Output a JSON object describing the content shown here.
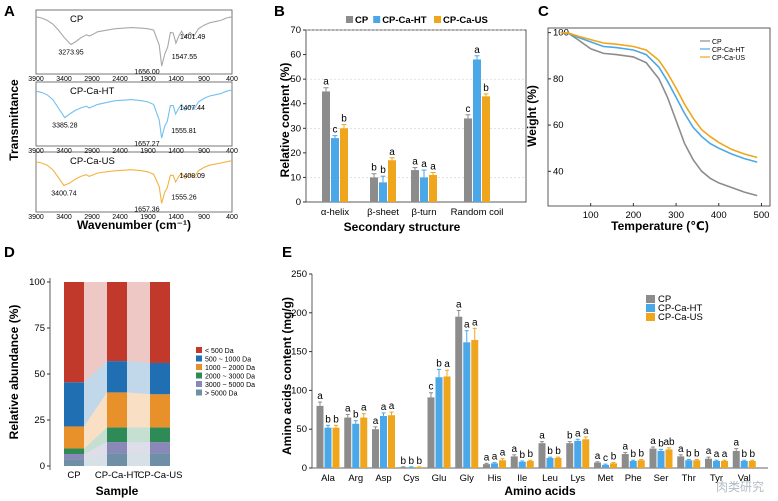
{
  "colors": {
    "CP": "#8c8c8c",
    "CP-Ca-HT": "#4aa8e8",
    "CP-Ca-US": "#f0a61c"
  },
  "panel_letters": [
    "A",
    "B",
    "C",
    "D",
    "E"
  ],
  "watermark": "肉类研究",
  "chart_data": [
    {
      "panel": "A",
      "type": "line",
      "ylabel": "Transmittance",
      "xlabel": "Wavenumber (cm⁻¹)",
      "xlim": [
        3900,
        400
      ],
      "xticks": [
        3900,
        3400,
        2900,
        2400,
        1900,
        1400,
        900,
        400
      ],
      "series": [
        {
          "name": "CP",
          "color": "#a8a8a8",
          "x": [
            3900,
            3800,
            3700,
            3600,
            3500,
            3400,
            3300,
            3274,
            3200,
            3100,
            3000,
            2950,
            2900,
            2800,
            2500,
            2200,
            2000,
            1900,
            1800,
            1700,
            1656,
            1600,
            1548,
            1500,
            1450,
            1401,
            1350,
            1300,
            1240,
            1150,
            1080,
            1000,
            900,
            800,
            700,
            600,
            500,
            400
          ],
          "y": [
            0.92,
            0.9,
            0.86,
            0.8,
            0.7,
            0.58,
            0.48,
            0.46,
            0.5,
            0.57,
            0.62,
            0.6,
            0.62,
            0.67,
            0.72,
            0.74,
            0.73,
            0.72,
            0.7,
            0.45,
            0.1,
            0.3,
            0.42,
            0.66,
            0.65,
            0.48,
            0.6,
            0.68,
            0.58,
            0.66,
            0.6,
            0.72,
            0.78,
            0.82,
            0.84,
            0.86,
            0.9,
            0.92
          ],
          "annotations": [
            {
              "x": 3274,
              "label": "3273.95"
            },
            {
              "x": 1656,
              "label": "1656.00"
            },
            {
              "x": 1548,
              "label": "1547.55"
            },
            {
              "x": 1401,
              "label": "1401.49"
            }
          ]
        },
        {
          "name": "CP-Ca-HT",
          "color": "#72c0ef",
          "x": [
            3900,
            3800,
            3700,
            3600,
            3500,
            3400,
            3385,
            3300,
            3200,
            3100,
            3000,
            2950,
            2900,
            2800,
            2500,
            2200,
            2000,
            1900,
            1800,
            1700,
            1657,
            1600,
            1556,
            1500,
            1450,
            1407,
            1350,
            1300,
            1240,
            1150,
            1080,
            1000,
            900,
            800,
            700,
            600,
            500,
            400
          ],
          "y": [
            0.88,
            0.86,
            0.82,
            0.74,
            0.6,
            0.46,
            0.44,
            0.5,
            0.56,
            0.6,
            0.63,
            0.6,
            0.62,
            0.66,
            0.72,
            0.74,
            0.72,
            0.7,
            0.66,
            0.4,
            0.1,
            0.3,
            0.38,
            0.64,
            0.64,
            0.5,
            0.6,
            0.66,
            0.56,
            0.64,
            0.58,
            0.7,
            0.76,
            0.8,
            0.82,
            0.84,
            0.88,
            0.9
          ],
          "annotations": [
            {
              "x": 3385,
              "label": "3385.28"
            },
            {
              "x": 1657,
              "label": "1657.27"
            },
            {
              "x": 1556,
              "label": "1555.81"
            },
            {
              "x": 1407,
              "label": "1407.44"
            }
          ]
        },
        {
          "name": "CP-Ca-US",
          "color": "#f1b440",
          "x": [
            3900,
            3800,
            3700,
            3600,
            3500,
            3401,
            3300,
            3200,
            3100,
            3000,
            2950,
            2900,
            2800,
            2500,
            2200,
            2000,
            1900,
            1800,
            1700,
            1657,
            1600,
            1555,
            1500,
            1450,
            1408,
            1350,
            1300,
            1240,
            1150,
            1080,
            1000,
            900,
            800,
            700,
            600,
            500,
            400
          ],
          "y": [
            0.86,
            0.84,
            0.8,
            0.72,
            0.58,
            0.44,
            0.48,
            0.55,
            0.6,
            0.63,
            0.6,
            0.62,
            0.66,
            0.7,
            0.72,
            0.7,
            0.68,
            0.64,
            0.42,
            0.12,
            0.32,
            0.4,
            0.62,
            0.62,
            0.5,
            0.6,
            0.66,
            0.56,
            0.64,
            0.58,
            0.7,
            0.76,
            0.8,
            0.82,
            0.84,
            0.86,
            0.88
          ],
          "annotations": [
            {
              "x": 3401,
              "label": "3400.74"
            },
            {
              "x": 1657,
              "label": "1657.36"
            },
            {
              "x": 1555,
              "label": "1555.26"
            },
            {
              "x": 1408,
              "label": "1408.09"
            }
          ]
        }
      ]
    },
    {
      "panel": "B",
      "type": "bar",
      "ylabel": "Relative content (%)",
      "xlabel": "Secondary structure",
      "ylim": [
        0,
        70
      ],
      "yticks": [
        0,
        10,
        20,
        30,
        40,
        50,
        60,
        70
      ],
      "categories": [
        "α-helix",
        "β-sheet",
        "β-turn",
        "Random coil"
      ],
      "series": [
        {
          "name": "CP",
          "values": [
            45,
            10,
            13,
            34
          ],
          "errors": [
            1.5,
            1.5,
            1,
            1.5
          ],
          "letters": [
            "a",
            "b",
            "a",
            "c"
          ]
        },
        {
          "name": "CP-Ca-HT",
          "values": [
            26,
            8,
            10,
            58
          ],
          "errors": [
            1,
            2.5,
            3,
            1.5
          ],
          "letters": [
            "c",
            "b",
            "a",
            "a"
          ]
        },
        {
          "name": "CP-Ca-US",
          "values": [
            30,
            17,
            11,
            43
          ],
          "errors": [
            1.5,
            1,
            1,
            1
          ],
          "letters": [
            "b",
            "a",
            "a",
            "b"
          ]
        }
      ]
    },
    {
      "panel": "C",
      "type": "line",
      "ylabel": "Weight (%)",
      "xlabel": "Temperature (℃)",
      "xlim": [
        0,
        520
      ],
      "ylim": [
        25,
        102
      ],
      "xticks": [
        100,
        200,
        300,
        400,
        500
      ],
      "yticks": [
        40,
        60,
        80,
        100
      ],
      "legend": "top-right",
      "series": [
        {
          "name": "CP",
          "color": "#8c8c8c",
          "x": [
            30,
            50,
            70,
            100,
            130,
            160,
            200,
            230,
            260,
            280,
            300,
            320,
            340,
            360,
            380,
            400,
            430,
            460,
            490
          ],
          "y": [
            100,
            99.5,
            97,
            93,
            91,
            90.5,
            89.5,
            87,
            80,
            72,
            62,
            52,
            45,
            40,
            37,
            35,
            33,
            31,
            29.5
          ]
        },
        {
          "name": "CP-Ca-HT",
          "color": "#4aa8e8",
          "x": [
            30,
            50,
            70,
            100,
            130,
            160,
            200,
            230,
            260,
            280,
            300,
            320,
            340,
            360,
            380,
            400,
            430,
            460,
            490
          ],
          "y": [
            100,
            99.6,
            98,
            96,
            94,
            93.5,
            92.5,
            90.5,
            85,
            79,
            72,
            65,
            59,
            55,
            52,
            50,
            47.5,
            45.5,
            44
          ]
        },
        {
          "name": "CP-Ca-US",
          "color": "#f0a61c",
          "x": [
            30,
            50,
            70,
            100,
            130,
            160,
            200,
            230,
            260,
            280,
            300,
            320,
            340,
            360,
            380,
            400,
            430,
            460,
            490
          ],
          "y": [
            100,
            99.7,
            98.5,
            97,
            95.5,
            95,
            94,
            92.5,
            88,
            82.5,
            76,
            69,
            63,
            58,
            55,
            52.5,
            49.5,
            47.5,
            46
          ]
        }
      ]
    },
    {
      "panel": "D",
      "type": "bar",
      "subtype": "stacked-100",
      "ylabel": "Relative abundance (%)",
      "xlabel": "Sample",
      "ylim": [
        0,
        100
      ],
      "yticks": [
        0,
        25,
        50,
        75,
        100
      ],
      "categories": [
        "CP",
        "CP-Ca-HT",
        "CP-Ca-US"
      ],
      "legend": "right",
      "series": [
        {
          "name": "> 5000 Da",
          "color": "#6e8fa6",
          "values": [
            3.5,
            7,
            7
          ]
        },
        {
          "name": "3000 ~ 5000 Da",
          "color": "#8a88b8",
          "values": [
            3,
            6,
            6
          ]
        },
        {
          "name": "2000 ~ 3000 Da",
          "color": "#2e8b57",
          "values": [
            3,
            8,
            8
          ]
        },
        {
          "name": "1000 ~ 2000 Da",
          "color": "#e8912a",
          "values": [
            12,
            19,
            18
          ]
        },
        {
          "name": "500 ~ 1000 Da",
          "color": "#1f6fb2",
          "values": [
            24,
            17,
            17
          ]
        },
        {
          "name": "< 500 Da",
          "color": "#c0392b",
          "values": [
            54.5,
            43,
            44
          ]
        }
      ]
    },
    {
      "panel": "E",
      "type": "bar",
      "ylabel": "Amino acids content (mg/g)",
      "xlabel": "Amino acids",
      "ylim": [
        0,
        250
      ],
      "yticks": [
        0,
        50,
        100,
        150,
        200,
        250
      ],
      "categories": [
        "Ala",
        "Arg",
        "Asp",
        "Cys",
        "Glu",
        "Gly",
        "His",
        "Ile",
        "Leu",
        "Lys",
        "Met",
        "Phe",
        "Ser",
        "Thr",
        "Tyr",
        "Val"
      ],
      "legend": "top-right",
      "series": [
        {
          "name": "CP",
          "values": [
            80,
            65,
            50,
            1,
            91,
            195,
            5,
            15,
            32,
            32,
            7,
            18,
            25,
            15,
            12,
            22
          ],
          "errors": [
            5,
            4,
            3,
            0.5,
            6,
            8,
            1,
            2,
            2,
            2,
            1,
            2,
            2,
            2,
            2,
            3
          ],
          "letters": [
            "a",
            "a",
            "a",
            "b",
            "c",
            "a",
            "a",
            "a",
            "a",
            "b",
            "a",
            "a",
            "a",
            "a",
            "a",
            "a"
          ]
        },
        {
          "name": "CP-Ca-HT",
          "values": [
            52,
            57,
            67,
            1,
            117,
            162,
            6,
            8,
            13,
            35,
            4,
            9,
            22,
            10,
            9,
            9
          ],
          "errors": [
            3,
            4,
            4,
            0.5,
            10,
            15,
            1,
            1,
            1,
            2,
            1,
            1,
            2,
            1,
            1,
            1
          ],
          "letters": [
            "b",
            "b",
            "a",
            "b",
            "b",
            "a",
            "a",
            "b",
            "b",
            "a",
            "c",
            "b",
            "b",
            "b",
            "a",
            "b"
          ]
        },
        {
          "name": "CP-Ca-US",
          "values": [
            52,
            65,
            68,
            1,
            118,
            165,
            10,
            9,
            13,
            37,
            6,
            10,
            24,
            10,
            9,
            9
          ],
          "errors": [
            3,
            5,
            4,
            0.5,
            8,
            15,
            2,
            1,
            1,
            3,
            1,
            1,
            2,
            1,
            1,
            1
          ],
          "letters": [
            "b",
            "a",
            "a",
            "b",
            "a",
            "a",
            "a",
            "b",
            "b",
            "a",
            "b",
            "b",
            "ab",
            "b",
            "a",
            "b"
          ]
        }
      ]
    }
  ]
}
